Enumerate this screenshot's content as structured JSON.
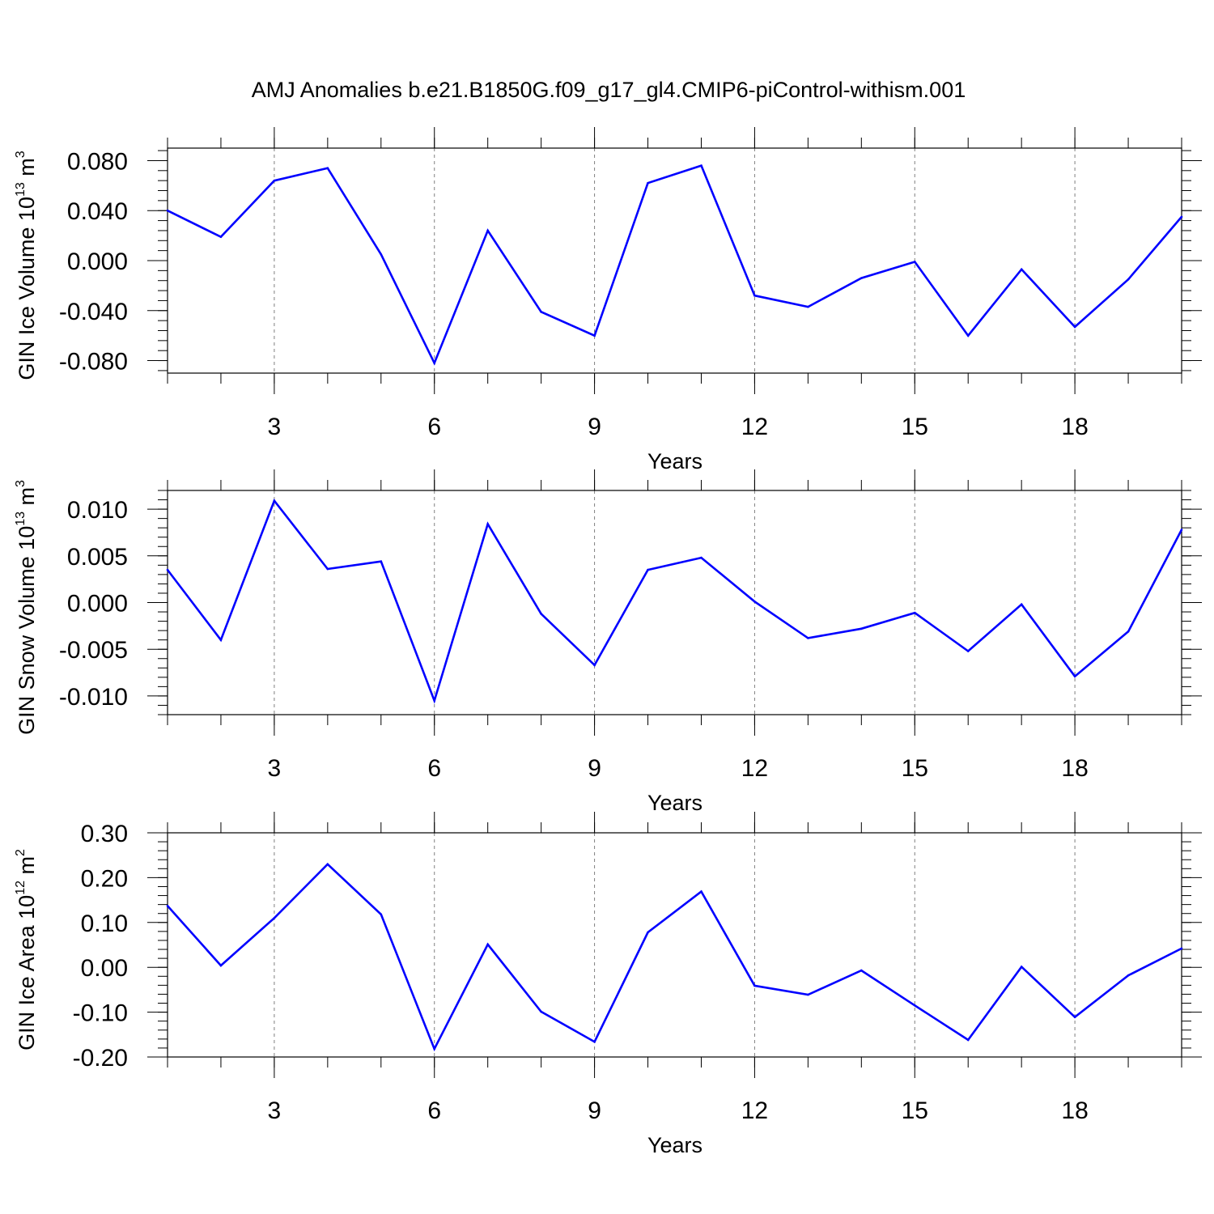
{
  "title": "AMJ Anomalies b.e21.B1850G.f09_g17_gl4.CMIP6-piControl-withism.001",
  "colors": {
    "line": "#0000ff",
    "axis": "#000000",
    "grid": "#808080"
  },
  "chart_data": [
    {
      "type": "line",
      "ylabel": {
        "main": "GIN Ice Volume 10",
        "exp": "13",
        "unit": " m",
        "unit_exp": "3"
      },
      "xlabel": "Years",
      "xlim": [
        1,
        20
      ],
      "ylim": [
        -0.09,
        0.09
      ],
      "x_ticks": [
        3,
        6,
        9,
        12,
        15,
        18
      ],
      "x_tick_labels": [
        "3",
        "6",
        "9",
        "12",
        "15",
        "18"
      ],
      "y_ticks": [
        0.08,
        0.04,
        0.0,
        -0.04,
        -0.08
      ],
      "y_tick_labels": [
        "0.080",
        "0.040",
        "0.000",
        "-0.040",
        "-0.080"
      ],
      "grid": "dashed vertical at x ticks",
      "x": [
        1,
        2,
        3,
        4,
        5,
        6,
        7,
        8,
        9,
        10,
        11,
        12,
        13,
        14,
        15,
        16,
        17,
        18,
        19,
        20
      ],
      "values": [
        0.04,
        0.019,
        0.064,
        0.074,
        0.005,
        -0.082,
        0.024,
        -0.041,
        -0.06,
        0.062,
        0.076,
        -0.028,
        -0.037,
        -0.014,
        -0.001,
        -0.06,
        -0.007,
        -0.053,
        -0.015,
        0.035
      ]
    },
    {
      "type": "line",
      "ylabel": {
        "main": "GIN Snow Volume 10",
        "exp": "13",
        "unit": " m",
        "unit_exp": "3"
      },
      "xlabel": "Years",
      "xlim": [
        1,
        20
      ],
      "ylim": [
        -0.012,
        0.012
      ],
      "x_ticks": [
        3,
        6,
        9,
        12,
        15,
        18
      ],
      "x_tick_labels": [
        "3",
        "6",
        "9",
        "12",
        "15",
        "18"
      ],
      "y_ticks": [
        0.01,
        0.005,
        0.0,
        -0.005,
        -0.01
      ],
      "y_tick_labels": [
        "0.010",
        "0.005",
        "0.000",
        "-0.005",
        "-0.010"
      ],
      "grid": "dashed vertical at x ticks",
      "x": [
        1,
        2,
        3,
        4,
        5,
        6,
        7,
        8,
        9,
        10,
        11,
        12,
        13,
        14,
        15,
        16,
        17,
        18,
        19,
        20
      ],
      "values": [
        0.0035,
        -0.004,
        0.0109,
        0.0036,
        0.0044,
        -0.0105,
        0.0084,
        -0.0012,
        -0.0067,
        0.0035,
        0.0048,
        0.0001,
        -0.0038,
        -0.0028,
        -0.0011,
        -0.0052,
        -0.0002,
        -0.0079,
        -0.0031,
        0.0078
      ]
    },
    {
      "type": "line",
      "ylabel": {
        "main": "GIN Ice Area 10",
        "exp": "12",
        "unit": " m",
        "unit_exp": "2"
      },
      "xlabel": "Years",
      "xlim": [
        1,
        20
      ],
      "ylim": [
        -0.2,
        0.3
      ],
      "x_ticks": [
        3,
        6,
        9,
        12,
        15,
        18
      ],
      "x_tick_labels": [
        "3",
        "6",
        "9",
        "12",
        "15",
        "18"
      ],
      "y_ticks": [
        0.3,
        0.2,
        0.1,
        0.0,
        -0.1,
        -0.2
      ],
      "y_tick_labels": [
        "0.30",
        "0.20",
        "0.10",
        "0.00",
        "-0.10",
        "-0.20"
      ],
      "grid": "dashed vertical at x ticks",
      "x": [
        1,
        2,
        3,
        4,
        5,
        6,
        7,
        8,
        9,
        10,
        11,
        12,
        13,
        14,
        15,
        16,
        17,
        18,
        19,
        20
      ],
      "values": [
        0.137,
        0.004,
        0.11,
        0.23,
        0.118,
        -0.182,
        0.051,
        -0.099,
        -0.166,
        0.078,
        0.169,
        -0.041,
        -0.061,
        -0.007,
        -0.085,
        -0.162,
        0.001,
        -0.111,
        -0.018,
        0.042
      ]
    }
  ]
}
